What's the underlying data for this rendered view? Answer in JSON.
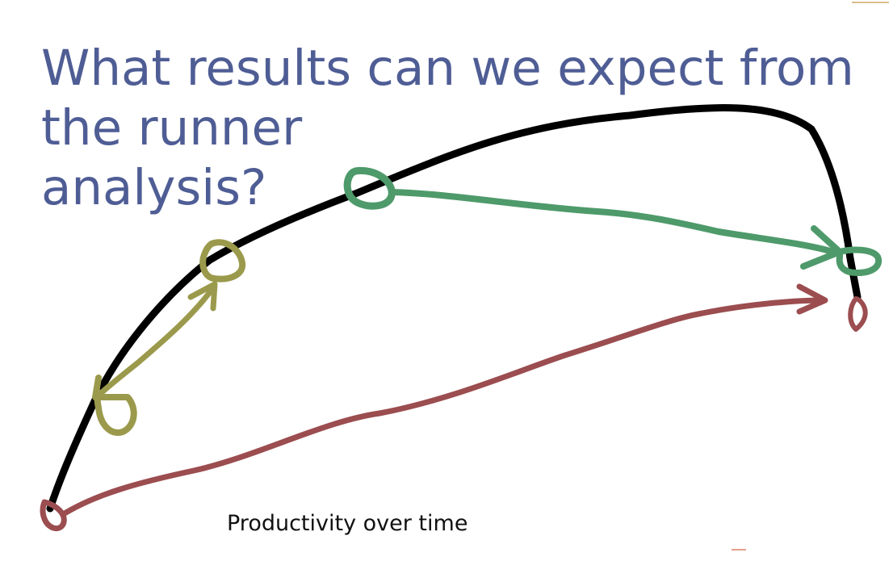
{
  "title": {
    "line1": "What results can we expect from",
    "line2": "the runner",
    "line3": "analysis?"
  },
  "caption": "Productivity over time",
  "colors": {
    "title": "#4f5d95",
    "productivity_curve": "#000000",
    "olive_marker": "#9b9a4c",
    "green_marker": "#4e9a6a",
    "red_marker": "#9b4d4f"
  }
}
